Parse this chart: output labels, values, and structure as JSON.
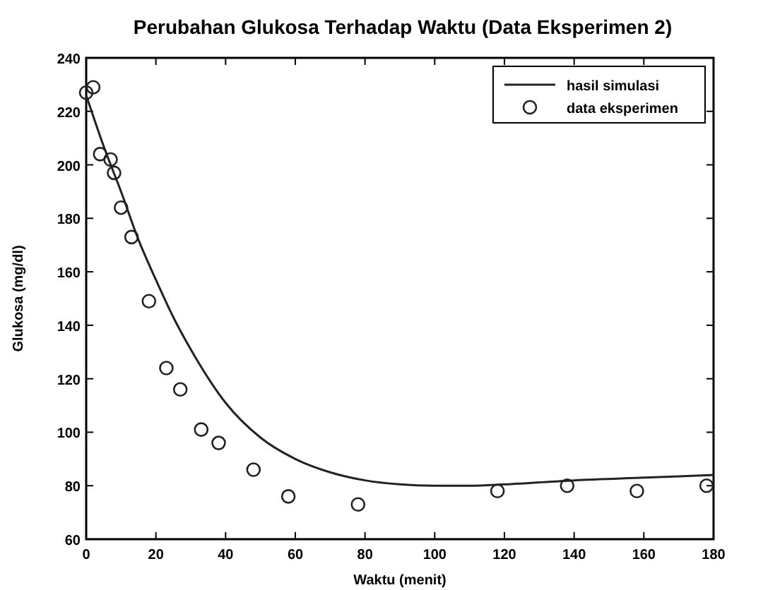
{
  "chart_data": {
    "type": "scatter",
    "title": "Perubahan Glukosa Terhadap Waktu (Data Eksperimen 2)",
    "xlabel": "Waktu (menit)",
    "ylabel": "Glukosa (mg/dl)",
    "xlim": [
      0,
      180
    ],
    "ylim": [
      60,
      240
    ],
    "xticks": [
      0,
      20,
      40,
      60,
      80,
      100,
      120,
      140,
      160,
      180
    ],
    "yticks": [
      60,
      80,
      100,
      120,
      140,
      160,
      180,
      200,
      220,
      240
    ],
    "grid": false,
    "legend": "top right",
    "series": [
      {
        "name": "hasil simulasi",
        "type": "line",
        "color": "#222222",
        "marker": "none",
        "line_style": "solid",
        "x": [
          0,
          5,
          10,
          15,
          20,
          25,
          30,
          40,
          50,
          60,
          70,
          80,
          90,
          100,
          110,
          120,
          140,
          160,
          180
        ],
        "values": [
          226,
          207,
          190,
          172,
          157,
          143,
          131,
          111,
          98,
          90,
          85,
          82,
          80.5,
          80,
          80,
          80.5,
          82,
          83,
          84
        ]
      },
      {
        "name": "data eksperimen",
        "type": "scatter",
        "color": "#222222",
        "marker": "circle",
        "x": [
          0,
          2,
          4,
          7,
          8,
          10,
          13,
          18,
          23,
          27,
          33,
          38,
          48,
          58,
          78,
          118,
          138,
          158,
          178
        ],
        "values": [
          227,
          229,
          204,
          202,
          197,
          184,
          173,
          149,
          124,
          116,
          101,
          96,
          86,
          76,
          73,
          78,
          80,
          78,
          80
        ]
      }
    ]
  }
}
